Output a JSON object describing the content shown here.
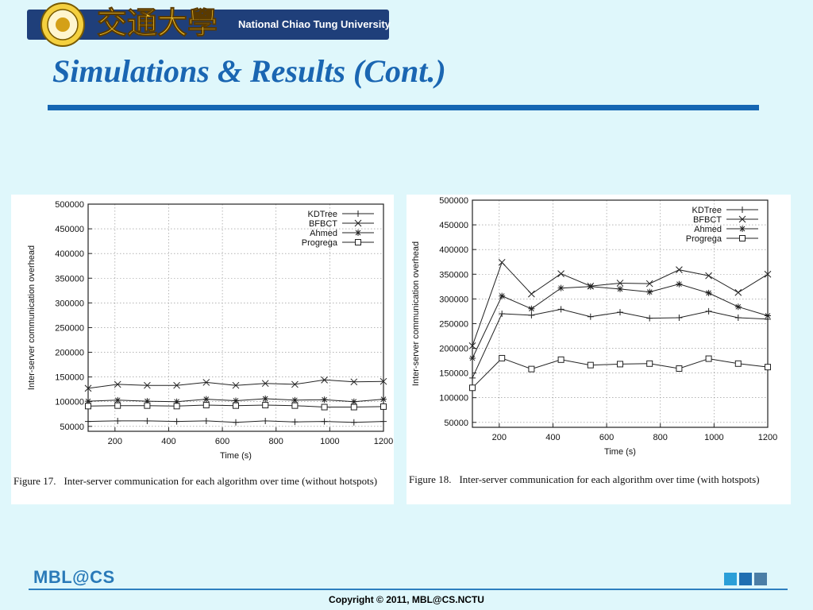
{
  "header": {
    "university_name": "National Chiao Tung University",
    "logo_chars": "交通大學"
  },
  "slide": {
    "title": "Simulations & Results (Cont.)"
  },
  "figures": [
    {
      "figure_number": "Figure 17.",
      "caption": "Inter-server communication for each algorithm over time (without hotspots)"
    },
    {
      "figure_number": "Figure 18.",
      "caption": "Inter-server communication for each algorithm over time (with hotspots)"
    }
  ],
  "chart_data": [
    {
      "type": "line",
      "xlabel": "Time (s)",
      "ylabel": "Inter-server communication overhead",
      "xlim": [
        100,
        1200
      ],
      "ylim": [
        40000,
        500000
      ],
      "xticks": [
        200,
        400,
        600,
        800,
        1000,
        1200
      ],
      "yticks": [
        50000,
        100000,
        150000,
        200000,
        250000,
        300000,
        350000,
        400000,
        450000,
        500000
      ],
      "grid": true,
      "legend_position": "top-right",
      "x": [
        100,
        210,
        320,
        430,
        540,
        650,
        760,
        870,
        980,
        1090,
        1200
      ],
      "series": [
        {
          "name": "KDTree",
          "marker": "plus",
          "values": [
            60000,
            61000,
            61000,
            60000,
            61000,
            58000,
            61000,
            59000,
            60000,
            58000,
            60000
          ]
        },
        {
          "name": "BFBCT",
          "marker": "x",
          "values": [
            127000,
            135000,
            133000,
            133000,
            139000,
            133000,
            137000,
            135000,
            144000,
            140000,
            141000
          ]
        },
        {
          "name": "Ahmed",
          "marker": "star",
          "values": [
            101000,
            103000,
            101000,
            100000,
            105000,
            102000,
            106000,
            103000,
            104000,
            100000,
            105000
          ]
        },
        {
          "name": "Progrega",
          "marker": "square",
          "values": [
            91000,
            92000,
            92000,
            91000,
            93000,
            92000,
            93000,
            92000,
            89000,
            89000,
            90000
          ]
        }
      ]
    },
    {
      "type": "line",
      "xlabel": "Time (s)",
      "ylabel": "Inter-server communication overhead",
      "xlim": [
        100,
        1200
      ],
      "ylim": [
        40000,
        500000
      ],
      "xticks": [
        200,
        400,
        600,
        800,
        1000,
        1200
      ],
      "yticks": [
        50000,
        100000,
        150000,
        200000,
        250000,
        300000,
        350000,
        400000,
        450000,
        500000
      ],
      "grid": true,
      "legend_position": "top-right",
      "x": [
        100,
        210,
        320,
        430,
        540,
        650,
        760,
        870,
        980,
        1090,
        1200
      ],
      "series": [
        {
          "name": "KDTree",
          "marker": "plus",
          "values": [
            140000,
            270000,
            267000,
            279000,
            264000,
            273000,
            261000,
            262000,
            275000,
            262000,
            259000
          ]
        },
        {
          "name": "BFBCT",
          "marker": "x",
          "values": [
            205000,
            374000,
            310000,
            351000,
            326000,
            332000,
            331000,
            359000,
            347000,
            313000,
            350000
          ]
        },
        {
          "name": "Ahmed",
          "marker": "star",
          "values": [
            180000,
            306000,
            280000,
            322000,
            325000,
            320000,
            314000,
            330000,
            312000,
            284000,
            266000
          ]
        },
        {
          "name": "Progrega",
          "marker": "square",
          "values": [
            120000,
            180000,
            158000,
            177000,
            166000,
            168000,
            169000,
            159000,
            179000,
            169000,
            162000
          ]
        }
      ]
    }
  ],
  "footer": {
    "lab_logo": "MBL@CS",
    "copyright": "Copyright © 2011, MBL@CS.NCTU",
    "square_colors": [
      "#2a9fd8",
      "#1f6fb2",
      "#4b7ea6"
    ]
  },
  "colors": {
    "background": "#dff7fb",
    "title": "#1a66b2",
    "rule": "#1566b3",
    "banner": "#1f3f7a"
  }
}
